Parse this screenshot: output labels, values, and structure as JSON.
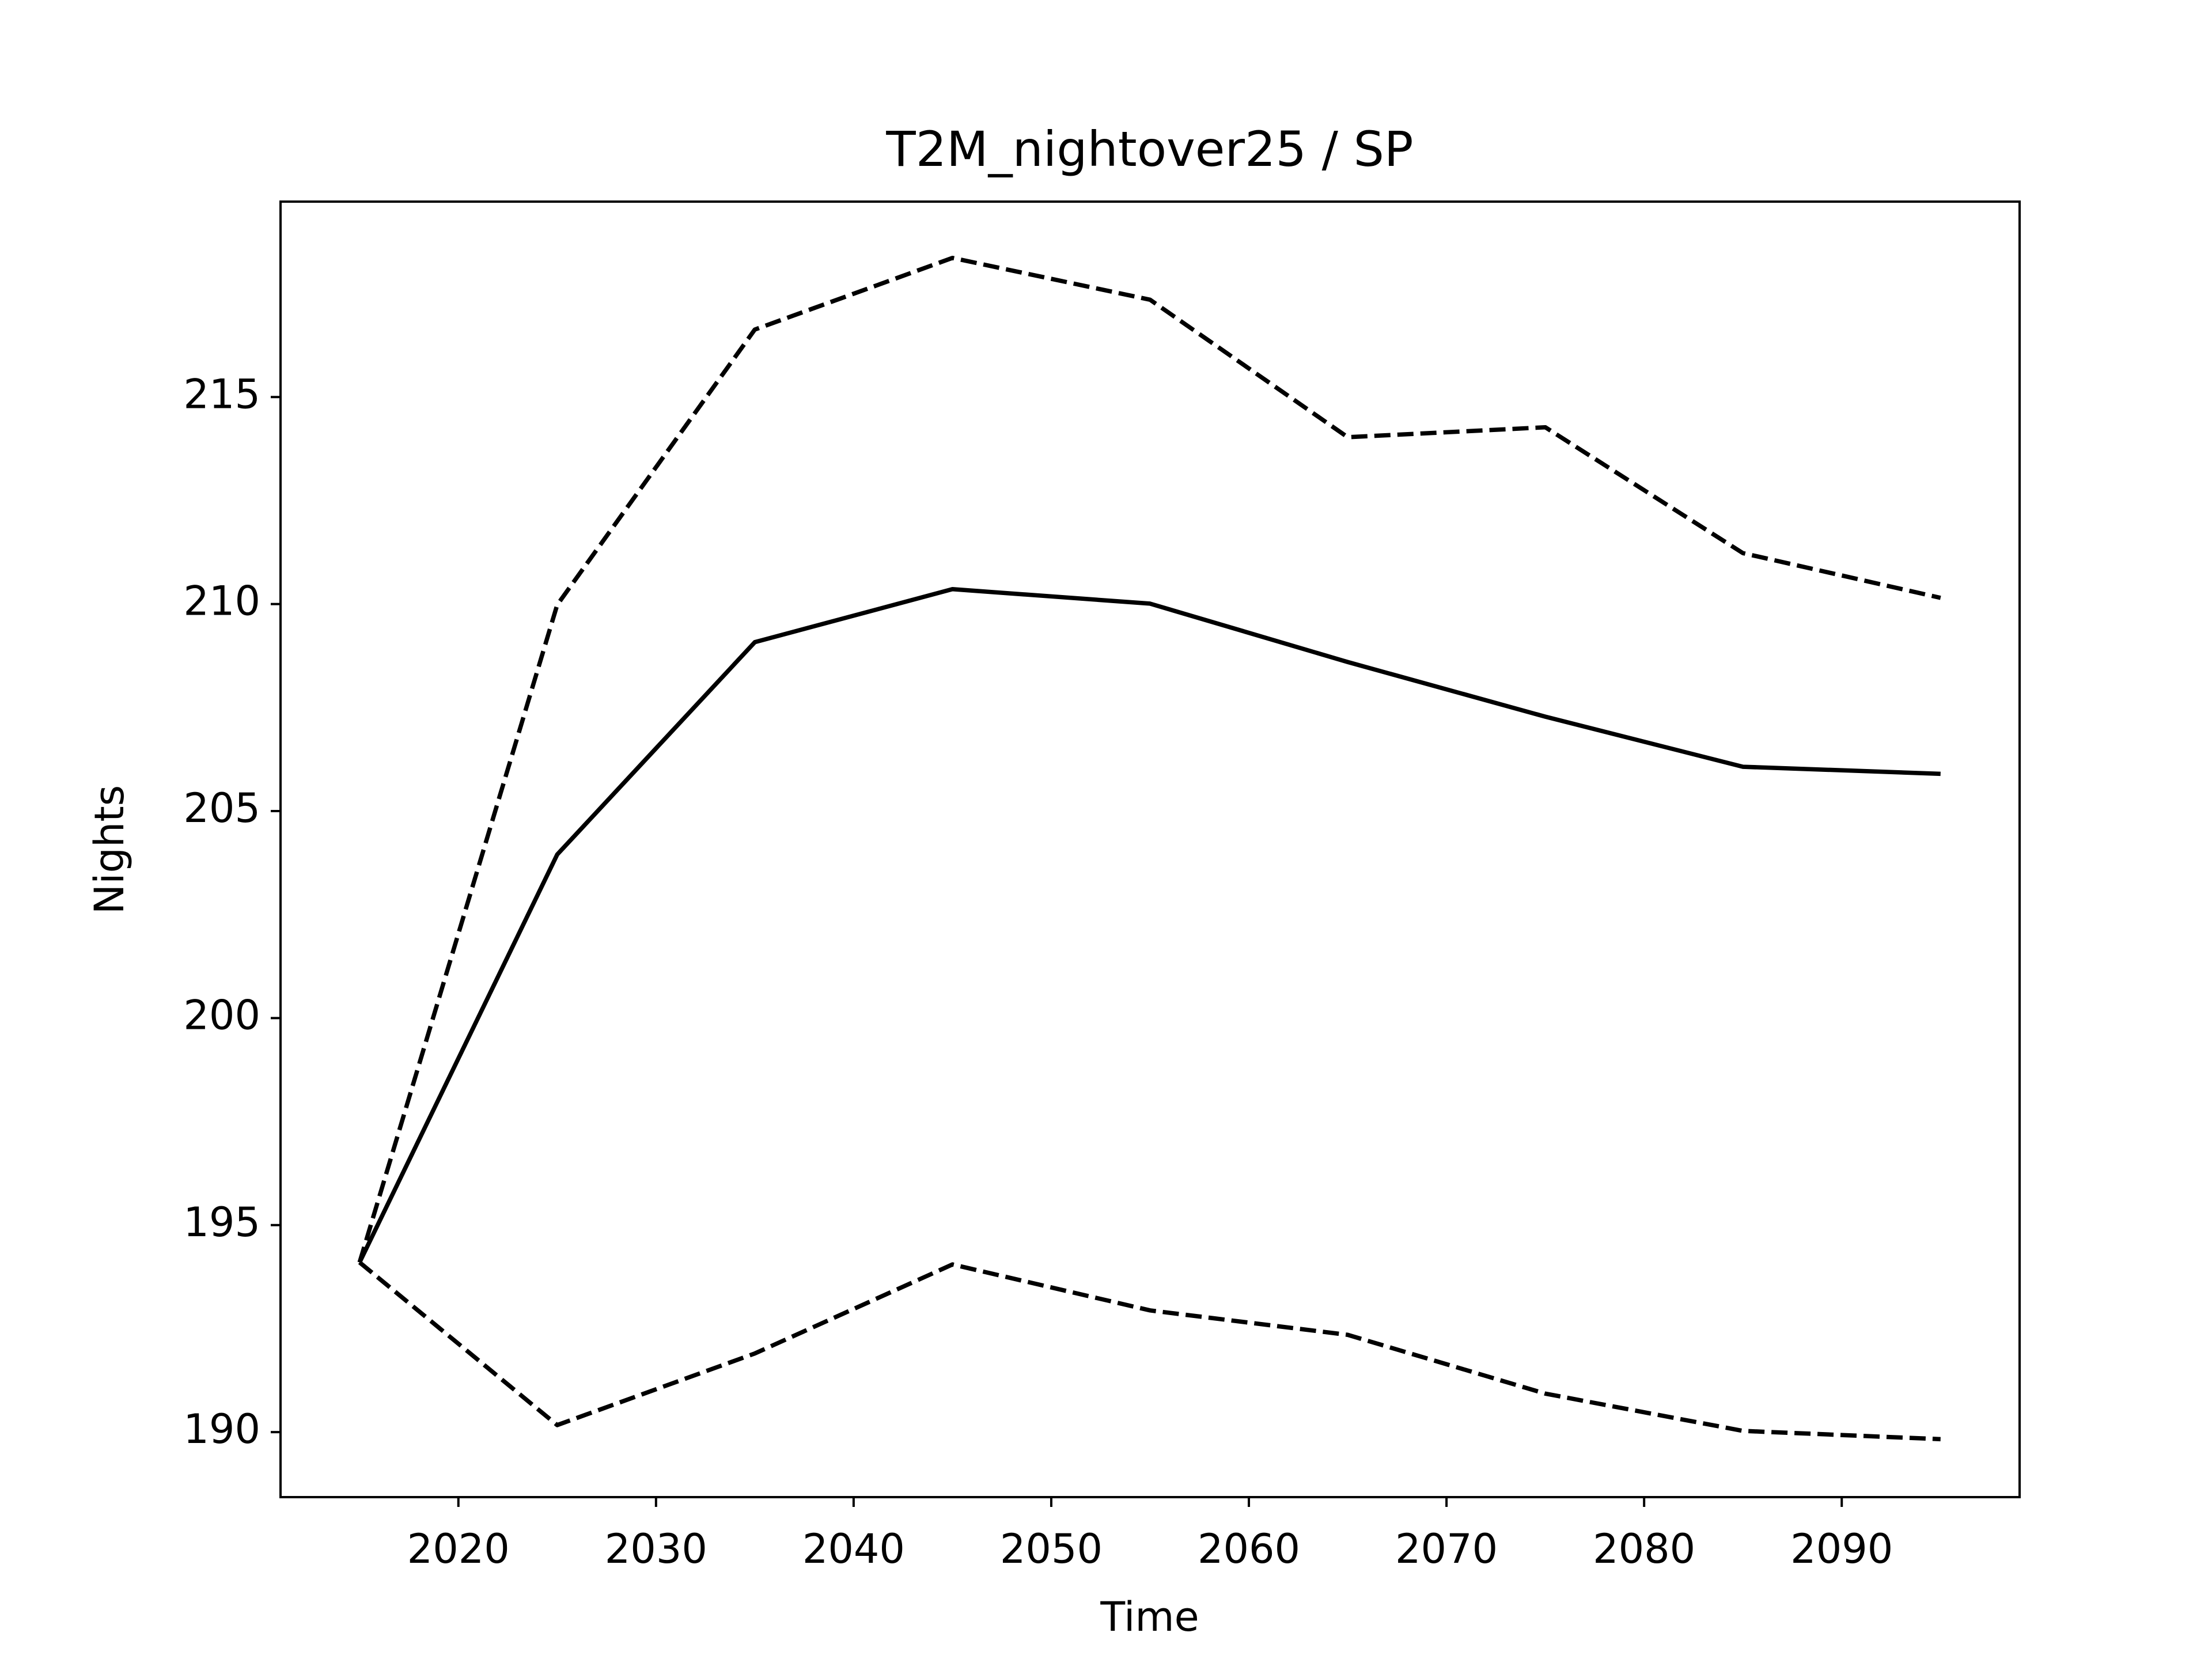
{
  "chart_data": {
    "type": "line",
    "title": "T2M_nightover25 / SP",
    "xlabel": "Time",
    "ylabel": "Nights",
    "x": [
      2015,
      2025,
      2035,
      2045,
      2055,
      2065,
      2075,
      2085,
      2095
    ],
    "series": [
      {
        "color": "#000000",
        "style": "solid",
        "values": [
          194.1,
          203.95,
          209.08,
          210.36,
          210.01,
          208.6,
          207.28,
          206.07,
          205.9
        ]
      },
      {
        "color": "#000000",
        "style": "dashed",
        "values": [
          194.1,
          209.98,
          216.63,
          218.36,
          217.35,
          214.03,
          214.27,
          211.23,
          210.15
        ]
      },
      {
        "color": "#000000",
        "style": "dashed",
        "values": [
          194.1,
          190.17,
          191.9,
          194.05,
          192.94,
          192.35,
          190.93,
          190.03,
          189.83
        ]
      }
    ],
    "xlim": [
      2011,
      2099
    ],
    "xticks": [
      2020,
      2030,
      2040,
      2050,
      2060,
      2070,
      2080,
      2090
    ],
    "ylim": [
      188.43,
      219.72
    ],
    "yticks": [
      190,
      195,
      200,
      205,
      210,
      215
    ],
    "grid": false
  }
}
